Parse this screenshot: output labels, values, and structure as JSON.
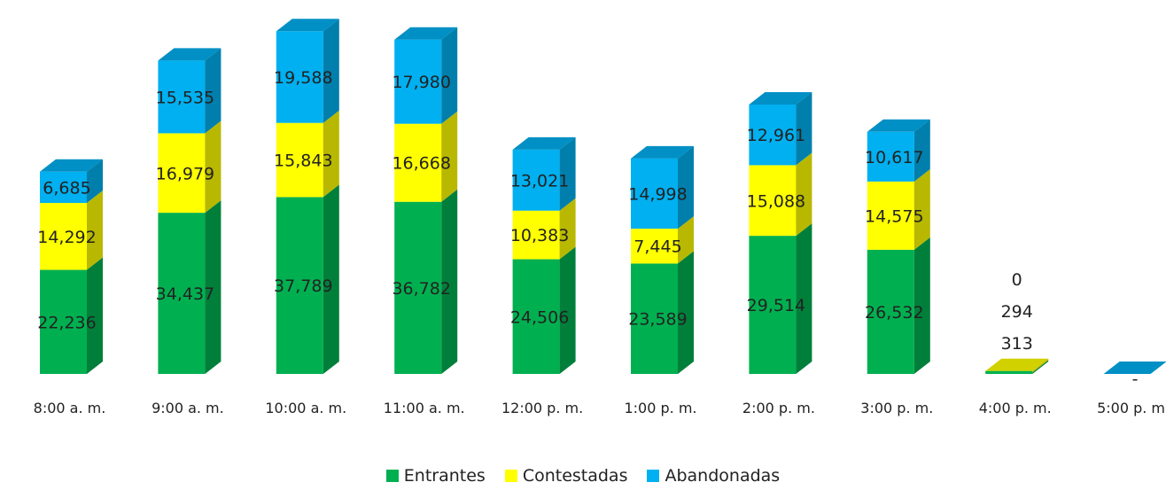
{
  "chart_data": {
    "type": "bar",
    "stacked": true,
    "three_d": true,
    "categories": [
      "8:00 a. m.",
      "9:00 a. m.",
      "10:00 a. m.",
      "11:00 a. m.",
      "12:00 p. m.",
      "1:00 p. m.",
      "2:00 p. m.",
      "3:00 p. m.",
      "4:00 p. m.",
      "5:00 p. m."
    ],
    "series": [
      {
        "name": "Entrantes",
        "color": "#00b050",
        "values": [
          22236,
          34437,
          37789,
          36782,
          24506,
          23589,
          29514,
          26532,
          313,
          0
        ],
        "labels": [
          "22,236",
          "34,437",
          "37,789",
          "36,782",
          "24,506",
          "23,589",
          "29,514",
          "26,532",
          "313",
          "-"
        ]
      },
      {
        "name": "Contestadas",
        "color": "#ffff00",
        "values": [
          14292,
          16979,
          15843,
          16668,
          10383,
          7445,
          15088,
          14575,
          294,
          0
        ],
        "labels": [
          "14,292",
          "16,979",
          "15,843",
          "16,668",
          "10,383",
          "7,445",
          "15,088",
          "14,575",
          "294",
          ""
        ]
      },
      {
        "name": "Abandonadas",
        "color": "#00b0f0",
        "values": [
          6685,
          15535,
          19588,
          17980,
          13021,
          14998,
          12961,
          10617,
          0,
          0
        ],
        "labels": [
          "6,685",
          "15,535",
          "19,588",
          "17,980",
          "13,021",
          "14,998",
          "12,961",
          "10,617",
          "0",
          ""
        ]
      }
    ],
    "title": "",
    "xlabel": "",
    "ylabel": "",
    "ylim": [
      0,
      78000
    ],
    "grid": false,
    "legend_position": "bottom"
  },
  "legend": {
    "items": [
      {
        "label": "Entrantes",
        "color": "#00b050"
      },
      {
        "label": "Contestadas",
        "color": "#ffff00"
      },
      {
        "label": "Abandonadas",
        "color": "#00b0f0"
      }
    ]
  }
}
